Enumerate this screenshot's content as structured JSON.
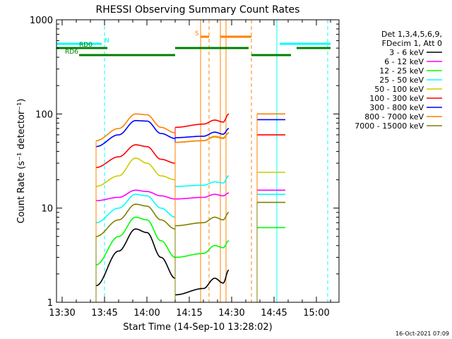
{
  "chart_data": {
    "type": "line",
    "title": "RHESSI Observing Summary Count Rates",
    "xlabel": "Start Time (14-Sep-10 13:28:02)",
    "ylabel": "Count Rate (s⁻¹ detector⁻¹)",
    "y_scale": "log",
    "ylim": [
      1,
      1000
    ],
    "xlim": [
      "13:28",
      "15:08"
    ],
    "x_ticks": [
      "13:30",
      "13:45",
      "14:00",
      "14:15",
      "14:30",
      "14:45",
      "15:00"
    ],
    "y_ticks": [
      "1",
      "10",
      "100",
      "1000"
    ],
    "timestamp": "16-Oct-2021 07:09",
    "legend_header": [
      "Det 1,3,4,5,6,9,",
      "FDecim 1, Att 0"
    ],
    "legend_placement": "right",
    "series": [
      {
        "name": "3 - 6 keV",
        "color": "#000000",
        "segA": [
          [
            "13:42",
            1.5
          ],
          [
            "13:50",
            3.5
          ],
          [
            "13:56",
            6
          ],
          [
            "14:00",
            5.5
          ],
          [
            "14:05",
            3
          ],
          [
            "14:10",
            1.8
          ]
        ],
        "segB": [
          [
            "14:10",
            1.2
          ],
          [
            "14:20",
            1.4
          ],
          [
            "14:24",
            1.8
          ],
          [
            "14:27",
            1.6
          ],
          [
            "14:29",
            2.2
          ]
        ],
        "segC": []
      },
      {
        "name": "6 - 12 keV",
        "color": "#ff00ff",
        "segA": [
          [
            "13:42",
            12
          ],
          [
            "13:50",
            13
          ],
          [
            "13:56",
            15.5
          ],
          [
            "14:00",
            15
          ],
          [
            "14:05",
            13.5
          ],
          [
            "14:10",
            12.5
          ]
        ],
        "segB": [
          [
            "14:10",
            12.5
          ],
          [
            "14:20",
            13
          ],
          [
            "14:24",
            14
          ],
          [
            "14:27",
            13.5
          ],
          [
            "14:29",
            14.5
          ]
        ],
        "segC": [
          [
            "14:39",
            15.5
          ],
          [
            "14:49",
            15.5
          ]
        ]
      },
      {
        "name": "12 - 25 keV",
        "color": "#00ff00",
        "segA": [
          [
            "13:42",
            2.5
          ],
          [
            "13:50",
            5
          ],
          [
            "13:56",
            8
          ],
          [
            "14:00",
            7.5
          ],
          [
            "14:05",
            4.5
          ],
          [
            "14:10",
            3
          ]
        ],
        "segB": [
          [
            "14:10",
            3
          ],
          [
            "14:20",
            3.3
          ],
          [
            "14:24",
            4
          ],
          [
            "14:27",
            3.8
          ],
          [
            "14:29",
            4.5
          ]
        ],
        "segC": [
          [
            "14:39",
            6.2
          ],
          [
            "14:49",
            6.2
          ]
        ]
      },
      {
        "name": "25 - 50 keV",
        "color": "#00ffff",
        "segA": [
          [
            "13:42",
            7
          ],
          [
            "13:50",
            10
          ],
          [
            "13:56",
            14
          ],
          [
            "14:00",
            13.5
          ],
          [
            "14:05",
            10
          ],
          [
            "14:10",
            8
          ]
        ],
        "segB": [
          [
            "14:10",
            17
          ],
          [
            "14:20",
            17.5
          ],
          [
            "14:24",
            19
          ],
          [
            "14:27",
            18.5
          ],
          [
            "14:29",
            22
          ]
        ],
        "segC": [
          [
            "14:39",
            14
          ],
          [
            "14:49",
            14
          ]
        ]
      },
      {
        "name": "50 - 100 keV",
        "color": "#cccc00",
        "segA": [
          [
            "13:42",
            17
          ],
          [
            "13:50",
            22
          ],
          [
            "13:56",
            34
          ],
          [
            "14:00",
            30
          ],
          [
            "14:05",
            22
          ],
          [
            "14:10",
            20
          ]
        ],
        "segB": [
          [
            "14:10",
            50
          ],
          [
            "14:20",
            52
          ],
          [
            "14:24",
            58
          ],
          [
            "14:27",
            56
          ],
          [
            "14:29",
            63
          ]
        ],
        "segC": [
          [
            "14:39",
            24
          ],
          [
            "14:49",
            24
          ]
        ]
      },
      {
        "name": "100 - 300 keV",
        "color": "#ff0000",
        "segA": [
          [
            "13:42",
            27
          ],
          [
            "13:50",
            35
          ],
          [
            "13:56",
            47
          ],
          [
            "14:00",
            45
          ],
          [
            "14:05",
            33
          ],
          [
            "14:10",
            30
          ]
        ],
        "segB": [
          [
            "14:10",
            72
          ],
          [
            "14:20",
            78
          ],
          [
            "14:24",
            86
          ],
          [
            "14:27",
            82
          ],
          [
            "14:29",
            100
          ]
        ],
        "segC": [
          [
            "14:39",
            60
          ],
          [
            "14:49",
            60
          ]
        ]
      },
      {
        "name": "300 - 800 keV",
        "color": "#0000ff",
        "segA": [
          [
            "13:42",
            45
          ],
          [
            "13:50",
            60
          ],
          [
            "13:56",
            85
          ],
          [
            "14:00",
            84
          ],
          [
            "14:05",
            62
          ],
          [
            "14:10",
            55
          ]
        ],
        "segB": [
          [
            "14:10",
            56
          ],
          [
            "14:20",
            58
          ],
          [
            "14:24",
            64
          ],
          [
            "14:27",
            61
          ],
          [
            "14:29",
            70
          ]
        ],
        "segC": [
          [
            "14:39",
            87
          ],
          [
            "14:49",
            87
          ]
        ]
      },
      {
        "name": "800 - 7000 keV",
        "color": "#ff8000",
        "segA": [
          [
            "13:42",
            52
          ],
          [
            "13:50",
            70
          ],
          [
            "13:56",
            100
          ],
          [
            "14:00",
            98
          ],
          [
            "14:05",
            72
          ],
          [
            "14:10",
            63
          ]
        ],
        "segB": [
          [
            "14:10",
            50
          ],
          [
            "14:20",
            52
          ],
          [
            "14:24",
            57
          ],
          [
            "14:27",
            55
          ],
          [
            "14:29",
            63
          ]
        ],
        "segC": [
          [
            "14:39",
            100
          ],
          [
            "14:49",
            100
          ]
        ]
      },
      {
        "name": "7000 - 15000 keV",
        "color": "#808000",
        "segA": [
          [
            "13:42",
            5
          ],
          [
            "13:50",
            7.5
          ],
          [
            "13:56",
            11
          ],
          [
            "14:00",
            10.5
          ],
          [
            "14:05",
            7.5
          ],
          [
            "14:10",
            6
          ]
        ],
        "segB": [
          [
            "14:10",
            6.5
          ],
          [
            "14:20",
            7
          ],
          [
            "14:24",
            8
          ],
          [
            "14:27",
            7.5
          ],
          [
            "14:29",
            9
          ]
        ],
        "segC": [
          [
            "14:39",
            11.5
          ],
          [
            "14:49",
            11.5
          ]
        ]
      }
    ],
    "flags": [
      {
        "label": "N",
        "color": "#00ffff",
        "y_frac": 0.915,
        "spans": [
          [
            "13:28",
            "13:44"
          ],
          [
            "14:47",
            "15:05"
          ]
        ],
        "label_at": "13:45"
      },
      {
        "label": "RD0",
        "color": "#008000",
        "y_frac": 0.9,
        "spans": [
          [
            "13:28",
            "13:46"
          ]
        ],
        "label_at": "13:36"
      },
      {
        "label": "RD6",
        "color": "#008000",
        "y_frac": 0.875,
        "spans": [
          [
            "13:36",
            "14:10"
          ],
          [
            "14:37",
            "14:51"
          ]
        ],
        "label_at": "13:31"
      },
      {
        "label": "",
        "color": "#008000",
        "y_frac": 0.9,
        "spans": [
          [
            "14:10",
            "14:36"
          ],
          [
            "14:53",
            "15:05"
          ]
        ],
        "label_at": ""
      },
      {
        "label": "S",
        "color": "#ff8000",
        "y_frac": 0.94,
        "spans": [
          [
            "14:19",
            "14:22"
          ],
          [
            "14:26",
            "14:37"
          ]
        ],
        "label_at": "14:17"
      }
    ],
    "vlines": [
      {
        "t": "13:28",
        "color": "#00ffff",
        "dash": false
      },
      {
        "t": "13:45",
        "color": "#00ffff",
        "dash": true
      },
      {
        "t": "14:46",
        "color": "#00ffff",
        "dash": false
      },
      {
        "t": "15:04",
        "color": "#00ffff",
        "dash": true
      },
      {
        "t": "14:19",
        "color": "#ff8000",
        "dash": false
      },
      {
        "t": "14:22",
        "color": "#ff8000",
        "dash": true
      },
      {
        "t": "14:26",
        "color": "#ff8000",
        "dash": false
      },
      {
        "t": "14:28",
        "color": "#ff8000",
        "dash": false
      },
      {
        "t": "14:37",
        "color": "#ff8000",
        "dash": true
      }
    ]
  }
}
